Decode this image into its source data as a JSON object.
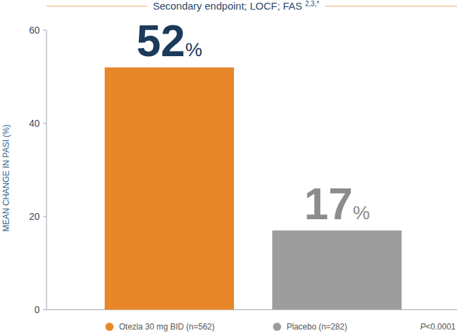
{
  "chart_data": {
    "type": "bar",
    "title": "Secondary endpoint; LOCF; FAS 2,3,*",
    "y_label": "MEAN CHANGE IN PASI (%)",
    "categories": [
      "Otezla 30 mg BID (n=562)",
      "Placebo (n=282)"
    ],
    "values": [
      52,
      17
    ],
    "value_labels": [
      "52%",
      "17%"
    ],
    "colors": [
      "#e8862a",
      "#9d9d9d"
    ],
    "ylim": [
      0,
      60
    ],
    "yticks": [
      0,
      20,
      40,
      60
    ],
    "grid": false,
    "data_labels": true,
    "tick_labels": "y",
    "legend": "bottom",
    "annotation": "P<0.0001"
  }
}
